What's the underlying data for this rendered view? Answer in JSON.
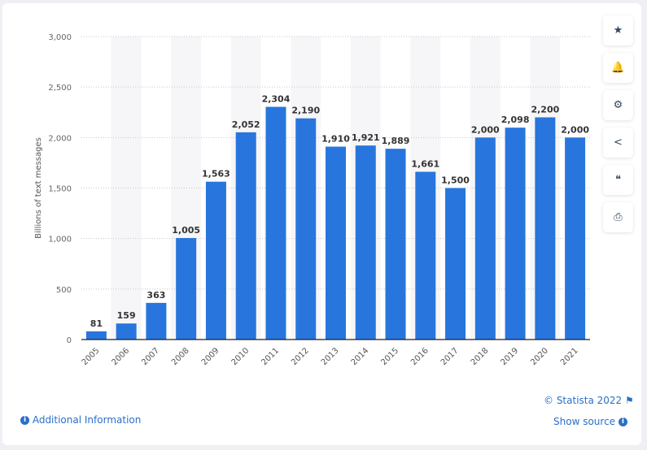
{
  "chart_data": {
    "type": "bar",
    "categories": [
      "2005",
      "2006",
      "2007",
      "2008",
      "2009",
      "2010",
      "2011",
      "2012",
      "2013",
      "2014",
      "2015",
      "2016",
      "2017",
      "2018",
      "2019",
      "2020",
      "2021"
    ],
    "values": [
      81,
      159,
      363,
      1005,
      1563,
      2052,
      2304,
      2190,
      1910,
      1921,
      1889,
      1661,
      1500,
      2000,
      2098,
      2200,
      2000
    ],
    "data_labels": [
      "81",
      "159",
      "363",
      "1,005",
      "1,563",
      "2,052",
      "2,304",
      "2,190",
      "1,910",
      "1,921",
      "1,889",
      "1,661",
      "1,500",
      "2,000",
      "2,098",
      "2,200",
      "2,000"
    ],
    "ylabel": "Billions of text messages",
    "xlabel": "",
    "ylim": [
      0,
      3000
    ],
    "yticks": [
      0,
      500,
      1000,
      1500,
      2000,
      2500,
      3000
    ],
    "ytick_labels": [
      "0",
      "500",
      "1,000",
      "1,500",
      "2,000",
      "2,500",
      "3,000"
    ],
    "grid": true,
    "bar_color": "#2876dd"
  },
  "footer": {
    "copyright": "© Statista 2022",
    "additional_info": "Additional Information",
    "show_source": "Show source"
  },
  "toolbar": [
    {
      "icon": "star-icon",
      "glyph": "★"
    },
    {
      "icon": "bell-icon",
      "glyph": "🔔"
    },
    {
      "icon": "gear-icon",
      "glyph": "⚙"
    },
    {
      "icon": "share-icon",
      "glyph": "<"
    },
    {
      "icon": "quote-icon",
      "glyph": "❝"
    },
    {
      "icon": "print-icon",
      "glyph": "⎙"
    }
  ]
}
